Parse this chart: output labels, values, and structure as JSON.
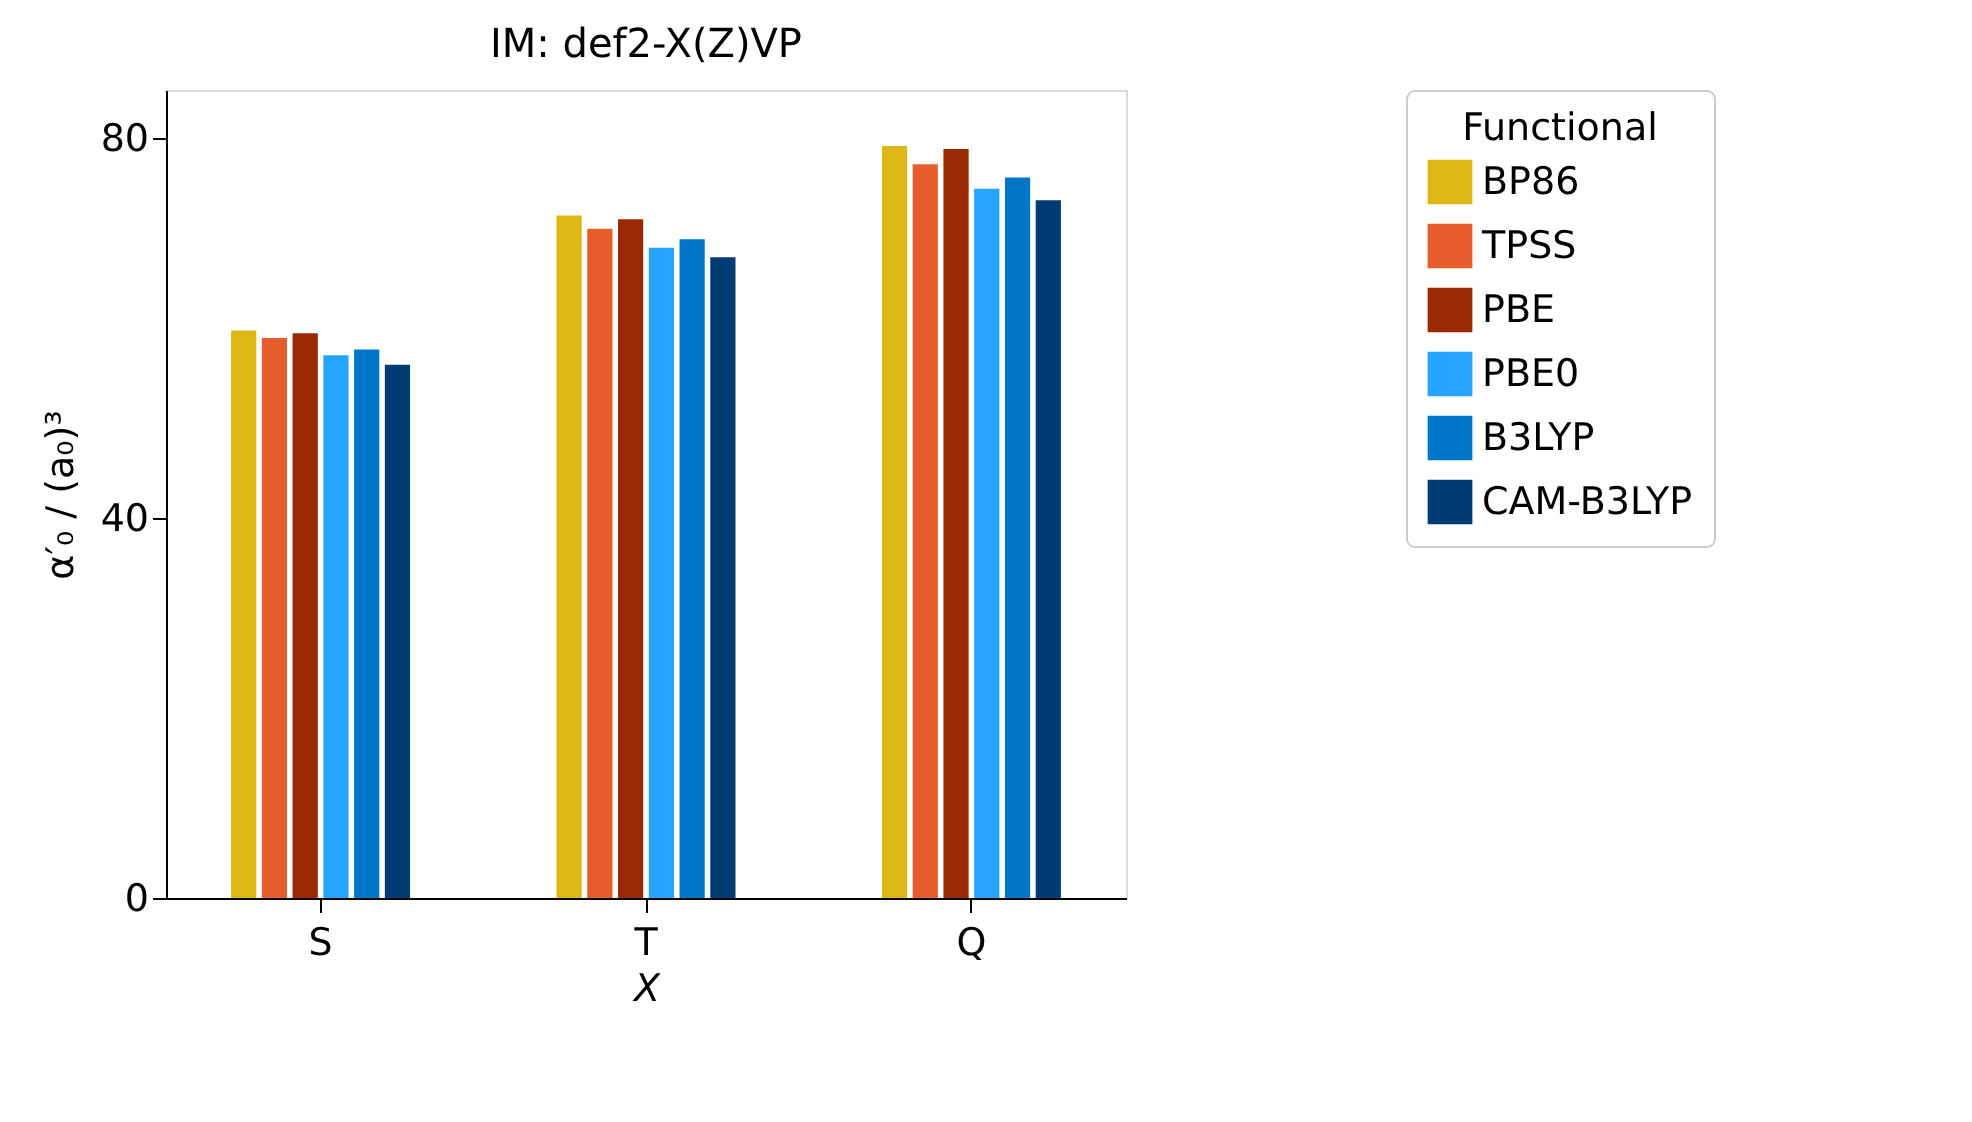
{
  "chart_data": {
    "type": "bar",
    "title": "IM: def2-X(Z)VP",
    "xlabel": "X",
    "ylabel": "α′₀ / (a₀)³",
    "legend_title": "Functional",
    "categories": [
      "S",
      "T",
      "Q"
    ],
    "series": [
      {
        "name": "BP86",
        "color": "#ddb815",
        "values": [
          59.7,
          71.8,
          79.1
        ]
      },
      {
        "name": "TPSS",
        "color": "#e65c2b",
        "values": [
          58.9,
          70.4,
          77.2
        ]
      },
      {
        "name": "PBE",
        "color": "#992900",
        "values": [
          59.4,
          71.4,
          78.8
        ]
      },
      {
        "name": "PBE0",
        "color": "#27a4ff",
        "values": [
          57.1,
          68.4,
          74.6
        ]
      },
      {
        "name": "B3LYP",
        "color": "#0076c9",
        "values": [
          57.7,
          69.3,
          75.8
        ]
      },
      {
        "name": "CAM-B3LYP",
        "color": "#003b73",
        "values": [
          56.1,
          67.4,
          73.4
        ]
      }
    ],
    "ylim": [
      0,
      85
    ],
    "yticks": [
      0,
      40,
      80
    ],
    "grid": false,
    "legend": "right"
  }
}
